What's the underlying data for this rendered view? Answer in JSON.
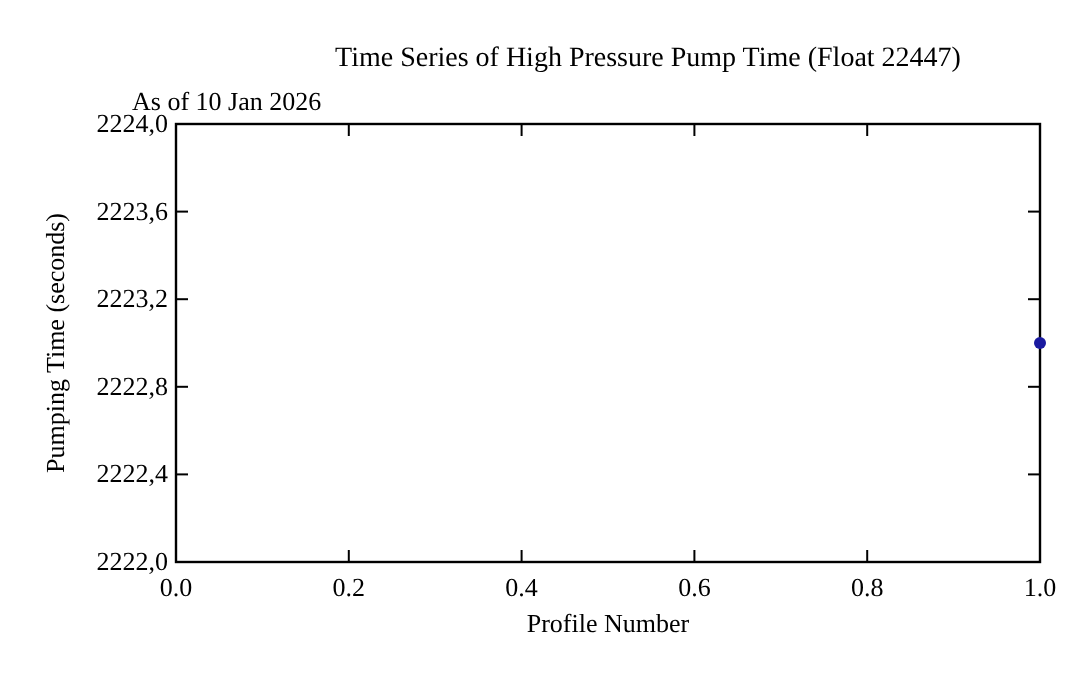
{
  "chart_data": {
    "type": "scatter",
    "title": "Time Series of High Pressure Pump Time (Float 22447)",
    "subtitle": "As of 10 Jan 2026",
    "xlabel": "Profile Number",
    "ylabel": "Pumping Time (seconds)",
    "x": [
      1.0
    ],
    "series": [
      {
        "color": "#1a1aa0",
        "values": [
          2223.0
        ]
      }
    ],
    "xlim": [
      0,
      1
    ],
    "ylim": [
      2222,
      2224
    ],
    "xticks": [
      {
        "value": 0,
        "label": "0.0"
      },
      {
        "value": 0.2,
        "label": "0.2"
      },
      {
        "value": 0.4,
        "label": "0.4"
      },
      {
        "value": 0.6,
        "label": "0.6"
      },
      {
        "value": 0.8,
        "label": "0.8"
      },
      {
        "value": 1,
        "label": "1.0"
      }
    ],
    "yticks": [
      {
        "value": 2222,
        "label": "2222,0"
      },
      {
        "value": 2222.4,
        "label": "2222,4"
      },
      {
        "value": 2222.8,
        "label": "2222,8"
      },
      {
        "value": 2223.2,
        "label": "2223,2"
      },
      {
        "value": 2223.6,
        "label": "2223,6"
      },
      {
        "value": 2224,
        "label": "2224,0"
      }
    ],
    "marker": "circle",
    "grid": false
  }
}
